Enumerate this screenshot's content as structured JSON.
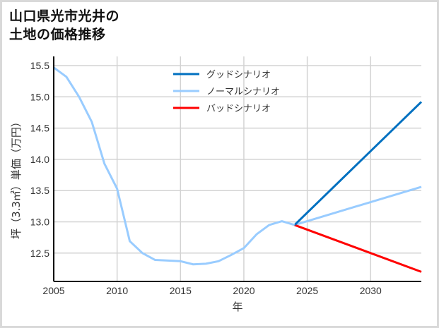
{
  "title_line1": "山口県光市光井の",
  "title_line2": "土地の価格推移",
  "chart_data": {
    "type": "line",
    "title": "山口県光市光井の土地の価格推移",
    "xlabel": "年",
    "ylabel": "坪（3.3㎡）単価（万円）",
    "xlim": [
      2005,
      2034
    ],
    "ylim": [
      12.05,
      15.55
    ],
    "grid": true,
    "legend_position": "upper center",
    "x_ticks": [
      "2005",
      "2010",
      "2015",
      "2020",
      "2025",
      "2030"
    ],
    "y_ticks": [
      "12.5",
      "13.0",
      "13.5",
      "14.0",
      "14.5",
      "15.0",
      "15.5"
    ],
    "series": [
      {
        "name": "ノーマルシナリオ (historical)",
        "color": "#99ccff",
        "x": [
          2005,
          2006,
          2007,
          2008,
          2009,
          2010,
          2011,
          2012,
          2013,
          2014,
          2015,
          2016,
          2017,
          2018,
          2019,
          2020,
          2021,
          2022,
          2023,
          2024
        ],
        "values": [
          15.47,
          15.32,
          15.0,
          14.6,
          13.93,
          13.53,
          12.69,
          12.5,
          12.39,
          12.38,
          12.37,
          12.32,
          12.33,
          12.37,
          12.47,
          12.58,
          12.8,
          12.95,
          13.01,
          12.95
        ]
      },
      {
        "name": "グッドシナリオ",
        "color": "#0070c0",
        "x": [
          2024,
          2034
        ],
        "values": [
          12.95,
          14.92
        ]
      },
      {
        "name": "ノーマルシナリオ",
        "color": "#99ccff",
        "x": [
          2024,
          2034
        ],
        "values": [
          12.95,
          13.56
        ]
      },
      {
        "name": "バッドシナリオ",
        "color": "#ff0000",
        "x": [
          2024,
          2034
        ],
        "values": [
          12.95,
          12.2
        ]
      }
    ]
  },
  "legend": [
    {
      "label": "グッドシナリオ",
      "color": "#0070c0"
    },
    {
      "label": "ノーマルシナリオ",
      "color": "#99ccff"
    },
    {
      "label": "バッドシナリオ",
      "color": "#ff0000"
    }
  ],
  "axes": {
    "xlabel": "年",
    "ylabel": "坪（3.3㎡）単価（万円）",
    "x_ticks": [
      "2005",
      "2010",
      "2015",
      "2020",
      "2025",
      "2030"
    ],
    "y_ticks": [
      "15.5",
      "15.0",
      "14.5",
      "14.0",
      "13.5",
      "13.0",
      "12.5"
    ]
  }
}
